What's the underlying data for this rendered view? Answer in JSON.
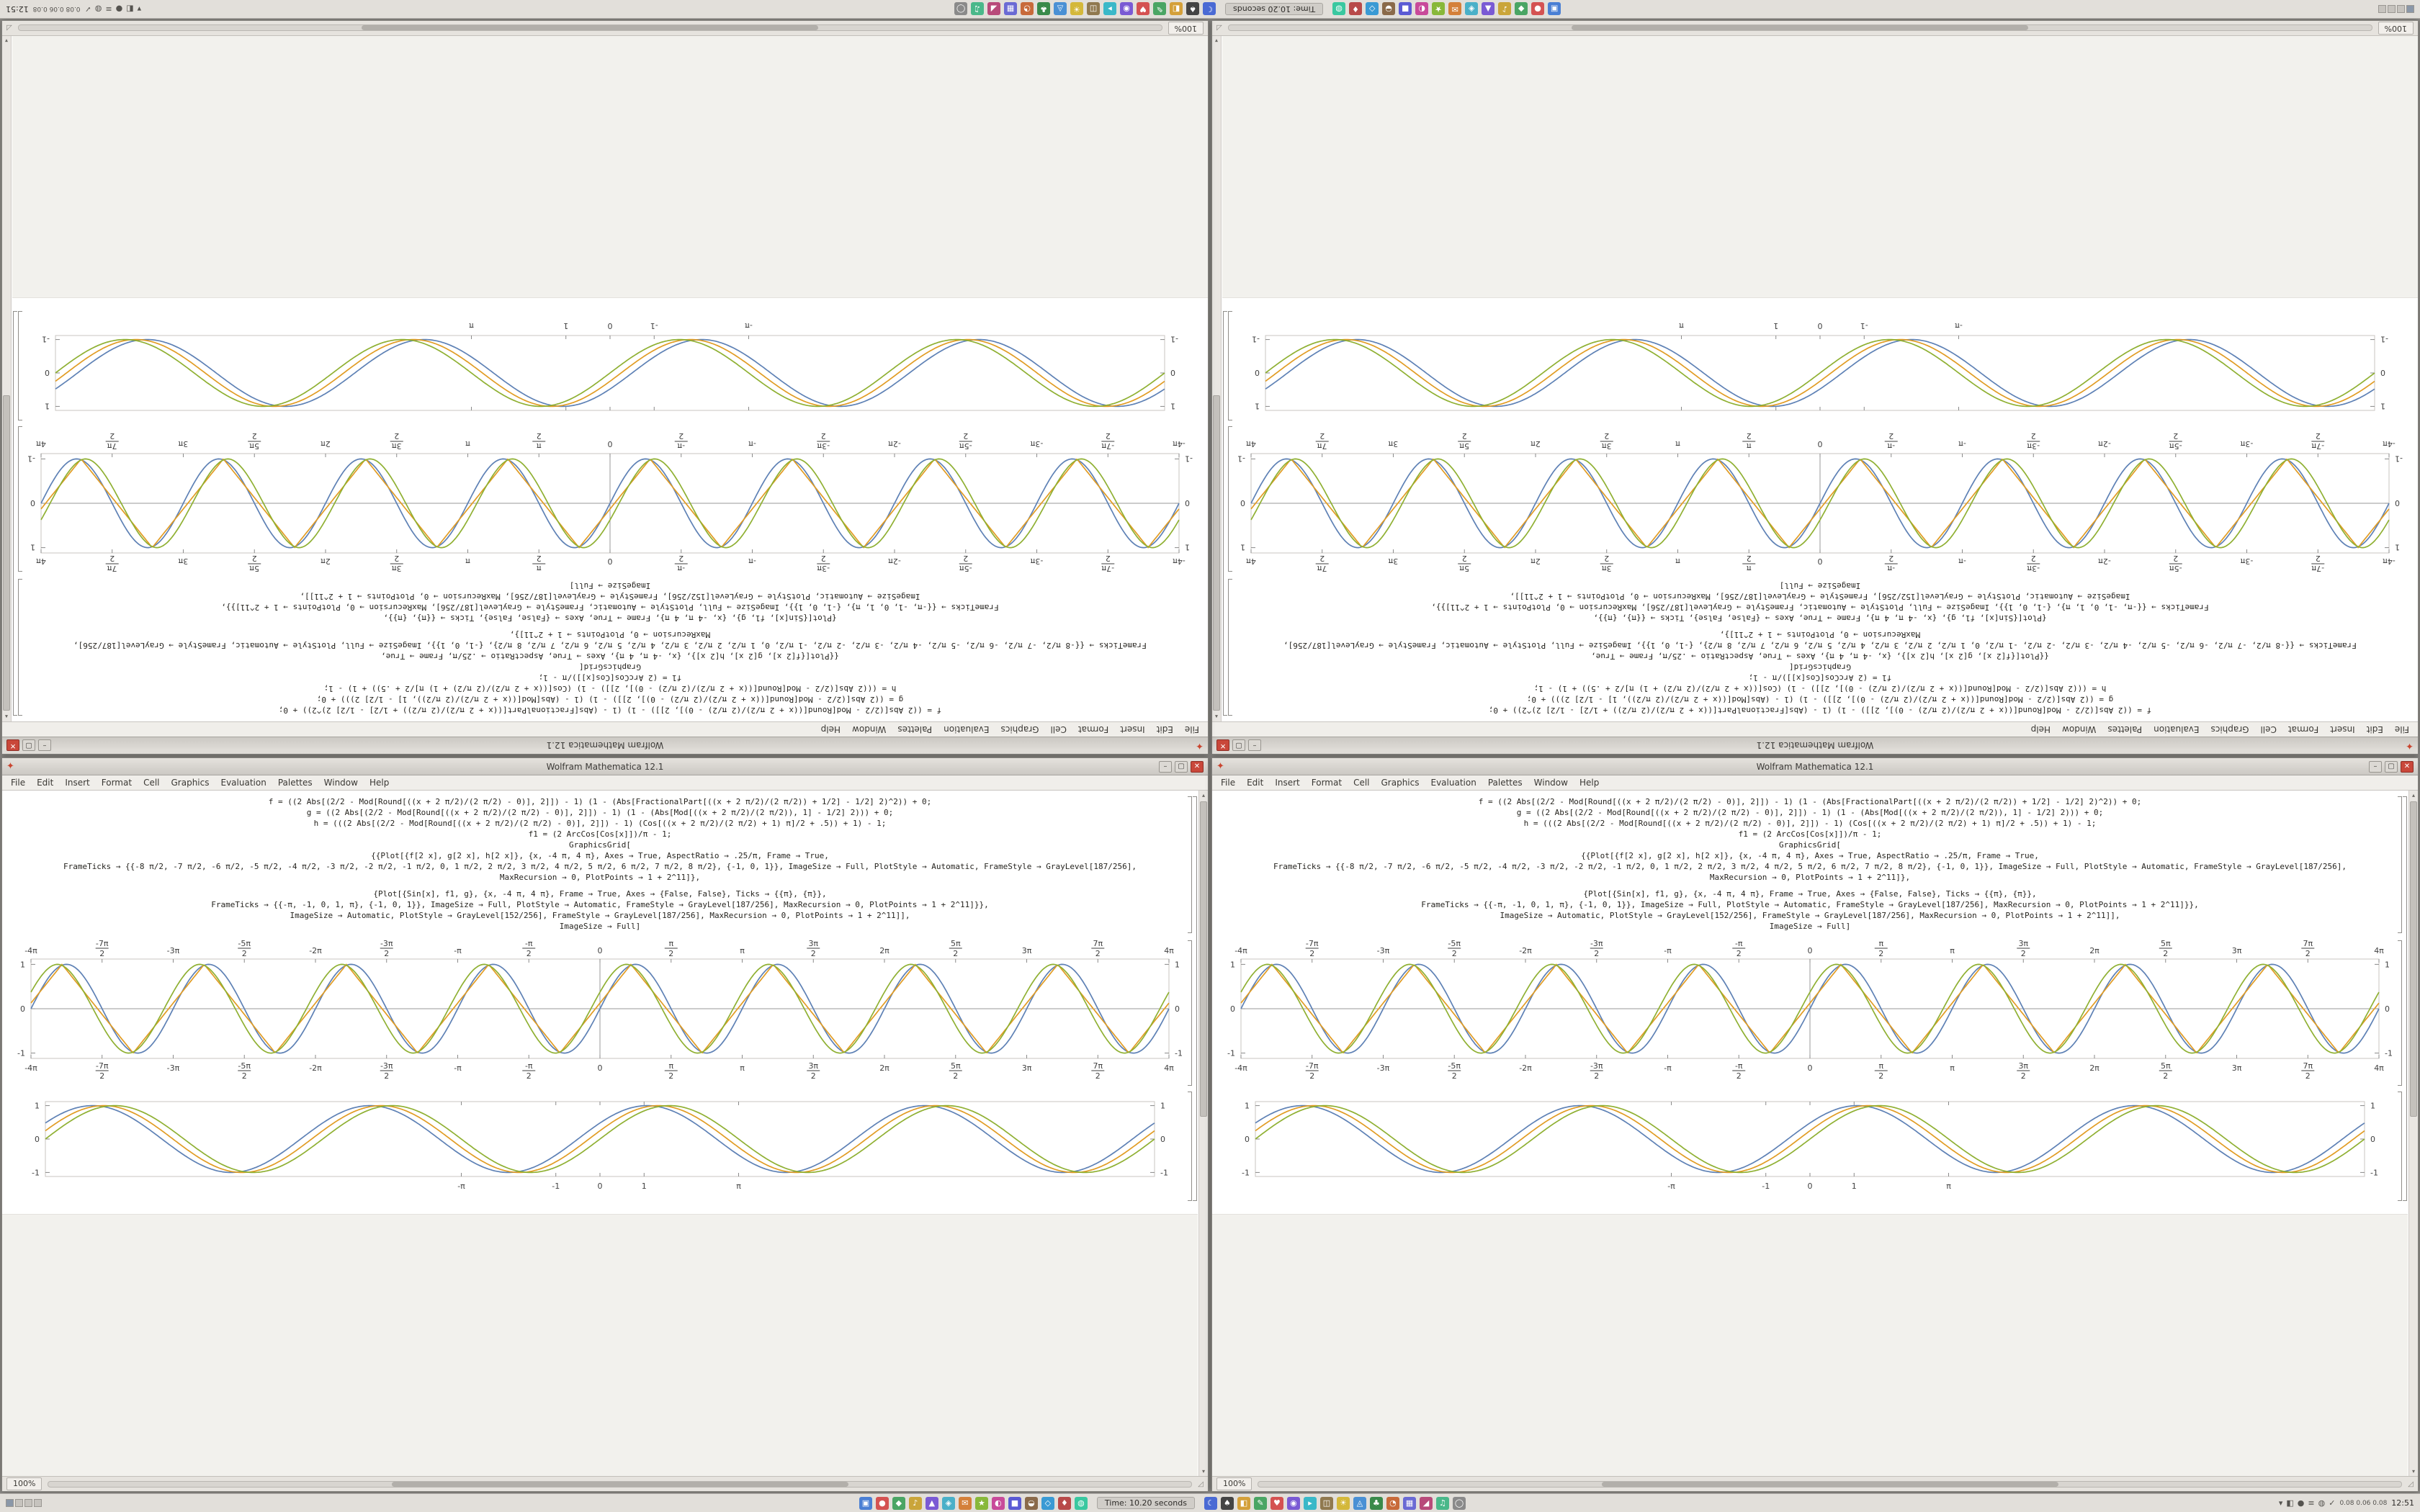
{
  "desktop": {
    "background": "#8e8c88"
  },
  "taskbar": {
    "window_label": "Time: 10.20 seconds",
    "net_text": "0.08 0.06 0.08",
    "clock": "12:51",
    "workspaces": [
      true,
      false,
      false,
      false
    ],
    "apps_a": [
      {
        "glyph": "▣",
        "color": "#4a7fd4"
      },
      {
        "glyph": "●",
        "color": "#d45252"
      },
      {
        "glyph": "◆",
        "color": "#4aa564"
      },
      {
        "glyph": "♪",
        "color": "#caa53a"
      },
      {
        "glyph": "▲",
        "color": "#7a5ad4"
      },
      {
        "glyph": "◈",
        "color": "#4ab0c8"
      },
      {
        "glyph": "✉",
        "color": "#d4803a"
      },
      {
        "glyph": "★",
        "color": "#88b83a"
      },
      {
        "glyph": "◐",
        "color": "#c84a9a"
      },
      {
        "glyph": "■",
        "color": "#5a5ad4"
      },
      {
        "glyph": "◒",
        "color": "#8a6a4a"
      },
      {
        "glyph": "◇",
        "color": "#3a9ad4"
      },
      {
        "glyph": "♦",
        "color": "#b84a4a"
      },
      {
        "glyph": "◍",
        "color": "#3ac8a0"
      }
    ],
    "apps_b": [
      {
        "glyph": "☾",
        "color": "#4a6ad4"
      },
      {
        "glyph": "♠",
        "color": "#444444"
      },
      {
        "glyph": "◧",
        "color": "#d4a03a"
      },
      {
        "glyph": "✎",
        "color": "#4aa564"
      },
      {
        "glyph": "♥",
        "color": "#d45252"
      },
      {
        "glyph": "◉",
        "color": "#7a5ad4"
      },
      {
        "glyph": "▸",
        "color": "#3ab8c8"
      },
      {
        "glyph": "◫",
        "color": "#90794f"
      },
      {
        "glyph": "☀",
        "color": "#d4b83a"
      },
      {
        "glyph": "◬",
        "color": "#4a90d4"
      },
      {
        "glyph": "♣",
        "color": "#3a8a4a"
      },
      {
        "glyph": "◔",
        "color": "#c86a3a"
      },
      {
        "glyph": "▦",
        "color": "#6a6ad4"
      },
      {
        "glyph": "◢",
        "color": "#b84a7a"
      },
      {
        "glyph": "♫",
        "color": "#4ab88a"
      },
      {
        "glyph": "◯",
        "color": "#8a8a8a"
      }
    ],
    "tray": [
      {
        "glyph": "▾"
      },
      {
        "glyph": "◧"
      },
      {
        "glyph": "●"
      },
      {
        "glyph": "≡"
      },
      {
        "glyph": "◍"
      },
      {
        "glyph": "✓"
      }
    ]
  },
  "window": {
    "title": "Wolfram Mathematica 12.1",
    "app_glyph": "✦",
    "buttons": {
      "minimize": "–",
      "maximize": "▢",
      "close": "✕"
    },
    "menus": [
      "File",
      "Edit",
      "Insert",
      "Format",
      "Cell",
      "Graphics",
      "Evaluation",
      "Palettes",
      "Window",
      "Help"
    ],
    "zoom": "100%",
    "scroll_up": "▴",
    "scroll_down": "▾",
    "grip": "◿",
    "cells": {
      "code1": [
        "f = ((2 Abs[(2/2 - Mod[Round[((x + 2 π/2)/(2 π/2) - 0)], 2]]) - 1) (1 - (Abs[FractionalPart[((x + 2 π/2)/(2 π/2)) + 1/2] - 1/2] 2)^2)) + 0;",
        "g = ((2 Abs[(2/2 - Mod[Round[((x + 2 π/2)/(2 π/2) - 0)], 2]]) - 1) (1 - (Abs[Mod[((x + 2 π/2)/(2 π/2)), 1] - 1/2] 2))) + 0;",
        "h = (((2 Abs[(2/2 - Mod[Round[((x + 2 π/2)/(2 π/2) - 0)], 2]]) - 1) (Cos[((x + 2 π/2)/(2 π/2) + 1) π]/2 + .5)) + 1) - 1;",
        "f1 = (2 ArcCos[Cos[x]])/π - 1;",
        "GraphicsGrid[",
        "{{Plot[{f[2 x], g[2 x], h[2 x]}, {x, -4 π, 4 π}, Axes → True, AspectRatio → .25/π, Frame → True,",
        "FrameTicks → {{-8 π/2, -7 π/2, -6 π/2, -5 π/2, -4 π/2, -3 π/2, -2 π/2, -1 π/2, 0, 1 π/2, 2 π/2, 3 π/2, 4 π/2, 5 π/2, 6 π/2, 7 π/2, 8 π/2}, {-1, 0, 1}}, ImageSize → Full, PlotStyle → Automatic, FrameStyle → GrayLevel[187/256],",
        "MaxRecursion → 0, PlotPoints → 1 + 2^11]},"
      ],
      "code2": [
        "{Plot[{Sin[x], f1, g}, {x, -4 π, 4 π}, Frame → True, Axes → {False, False}, Ticks → {{π}, {π}},",
        "FrameTicks → {{-π, -1, 0, 1, π}, {-1, 0, 1}}, ImageSize → Full, PlotStyle → Automatic, FrameStyle → GrayLevel[187/256], MaxRecursion → 0, PlotPoints → 1 + 2^11]}},",
        "ImageSize → Automatic, PlotStyle → GrayLevel[152/256], FrameStyle → GrayLevel[187/256], MaxRecursion → 0, PlotPoints → 1 + 2^11]],",
        "ImageSize → Full]"
      ]
    }
  },
  "chart_data": [
    {
      "type": "line",
      "title": "",
      "xmin": -12.566,
      "xmax": 12.566,
      "ymin": -1.12,
      "ymax": 1.12,
      "axes": true,
      "top_labels": true,
      "frame_color": "#c8c6c2",
      "tick_color": "#8a8a8a",
      "x_ticks": [
        {
          "v": -12.566,
          "label": "-4π"
        },
        {
          "v": -10.996,
          "label": "-7π/2"
        },
        {
          "v": -9.4248,
          "label": "-3π"
        },
        {
          "v": -7.854,
          "label": "-5π/2"
        },
        {
          "v": -6.2832,
          "label": "-2π"
        },
        {
          "v": -4.7124,
          "label": "-3π/2"
        },
        {
          "v": -3.1416,
          "label": "-π"
        },
        {
          "v": -1.5708,
          "label": "-π/2"
        },
        {
          "v": 0,
          "label": "0"
        },
        {
          "v": 1.5708,
          "label": "π/2"
        },
        {
          "v": 3.1416,
          "label": "π"
        },
        {
          "v": 4.7124,
          "label": "3π/2"
        },
        {
          "v": 6.2832,
          "label": "2π"
        },
        {
          "v": 7.854,
          "label": "5π/2"
        },
        {
          "v": 9.4248,
          "label": "3π"
        },
        {
          "v": 10.996,
          "label": "7π/2"
        },
        {
          "v": 12.566,
          "label": "4π"
        }
      ],
      "y_ticks": [
        -1,
        0,
        1
      ],
      "series": [
        {
          "name": "f",
          "type": "sin",
          "freq": 2,
          "phase": 0,
          "color": "#5e81b5"
        },
        {
          "name": "g",
          "type": "tri",
          "freq": 2,
          "phase": 0.2,
          "color": "#e19c24"
        },
        {
          "name": "h",
          "type": "smooth",
          "freq": 2,
          "phase": 0.4,
          "color": "#8fb032"
        }
      ]
    },
    {
      "type": "line",
      "title": "",
      "xmin": -12.566,
      "xmax": 12.566,
      "ymin": -1.12,
      "ymax": 1.12,
      "axes": false,
      "top_labels": false,
      "frame_color": "#c8c6c2",
      "tick_color": "#8a8a8a",
      "x_ticks": [
        {
          "v": -3.1416,
          "label": "-π"
        },
        {
          "v": -1,
          "label": "-1"
        },
        {
          "v": 0,
          "label": "0"
        },
        {
          "v": 1,
          "label": "1"
        },
        {
          "v": 3.1416,
          "label": "π"
        }
      ],
      "y_ticks": [
        -1,
        0,
        1
      ],
      "series": [
        {
          "name": "Sin[x]",
          "type": "sin",
          "freq": 1,
          "phase": 0.5,
          "color": "#5e81b5"
        },
        {
          "name": "f1",
          "type": "sin",
          "freq": 1,
          "phase": 0.25,
          "color": "#e19c24"
        },
        {
          "name": "g",
          "type": "sin",
          "freq": 1,
          "phase": 0,
          "color": "#8fb032"
        }
      ]
    }
  ]
}
